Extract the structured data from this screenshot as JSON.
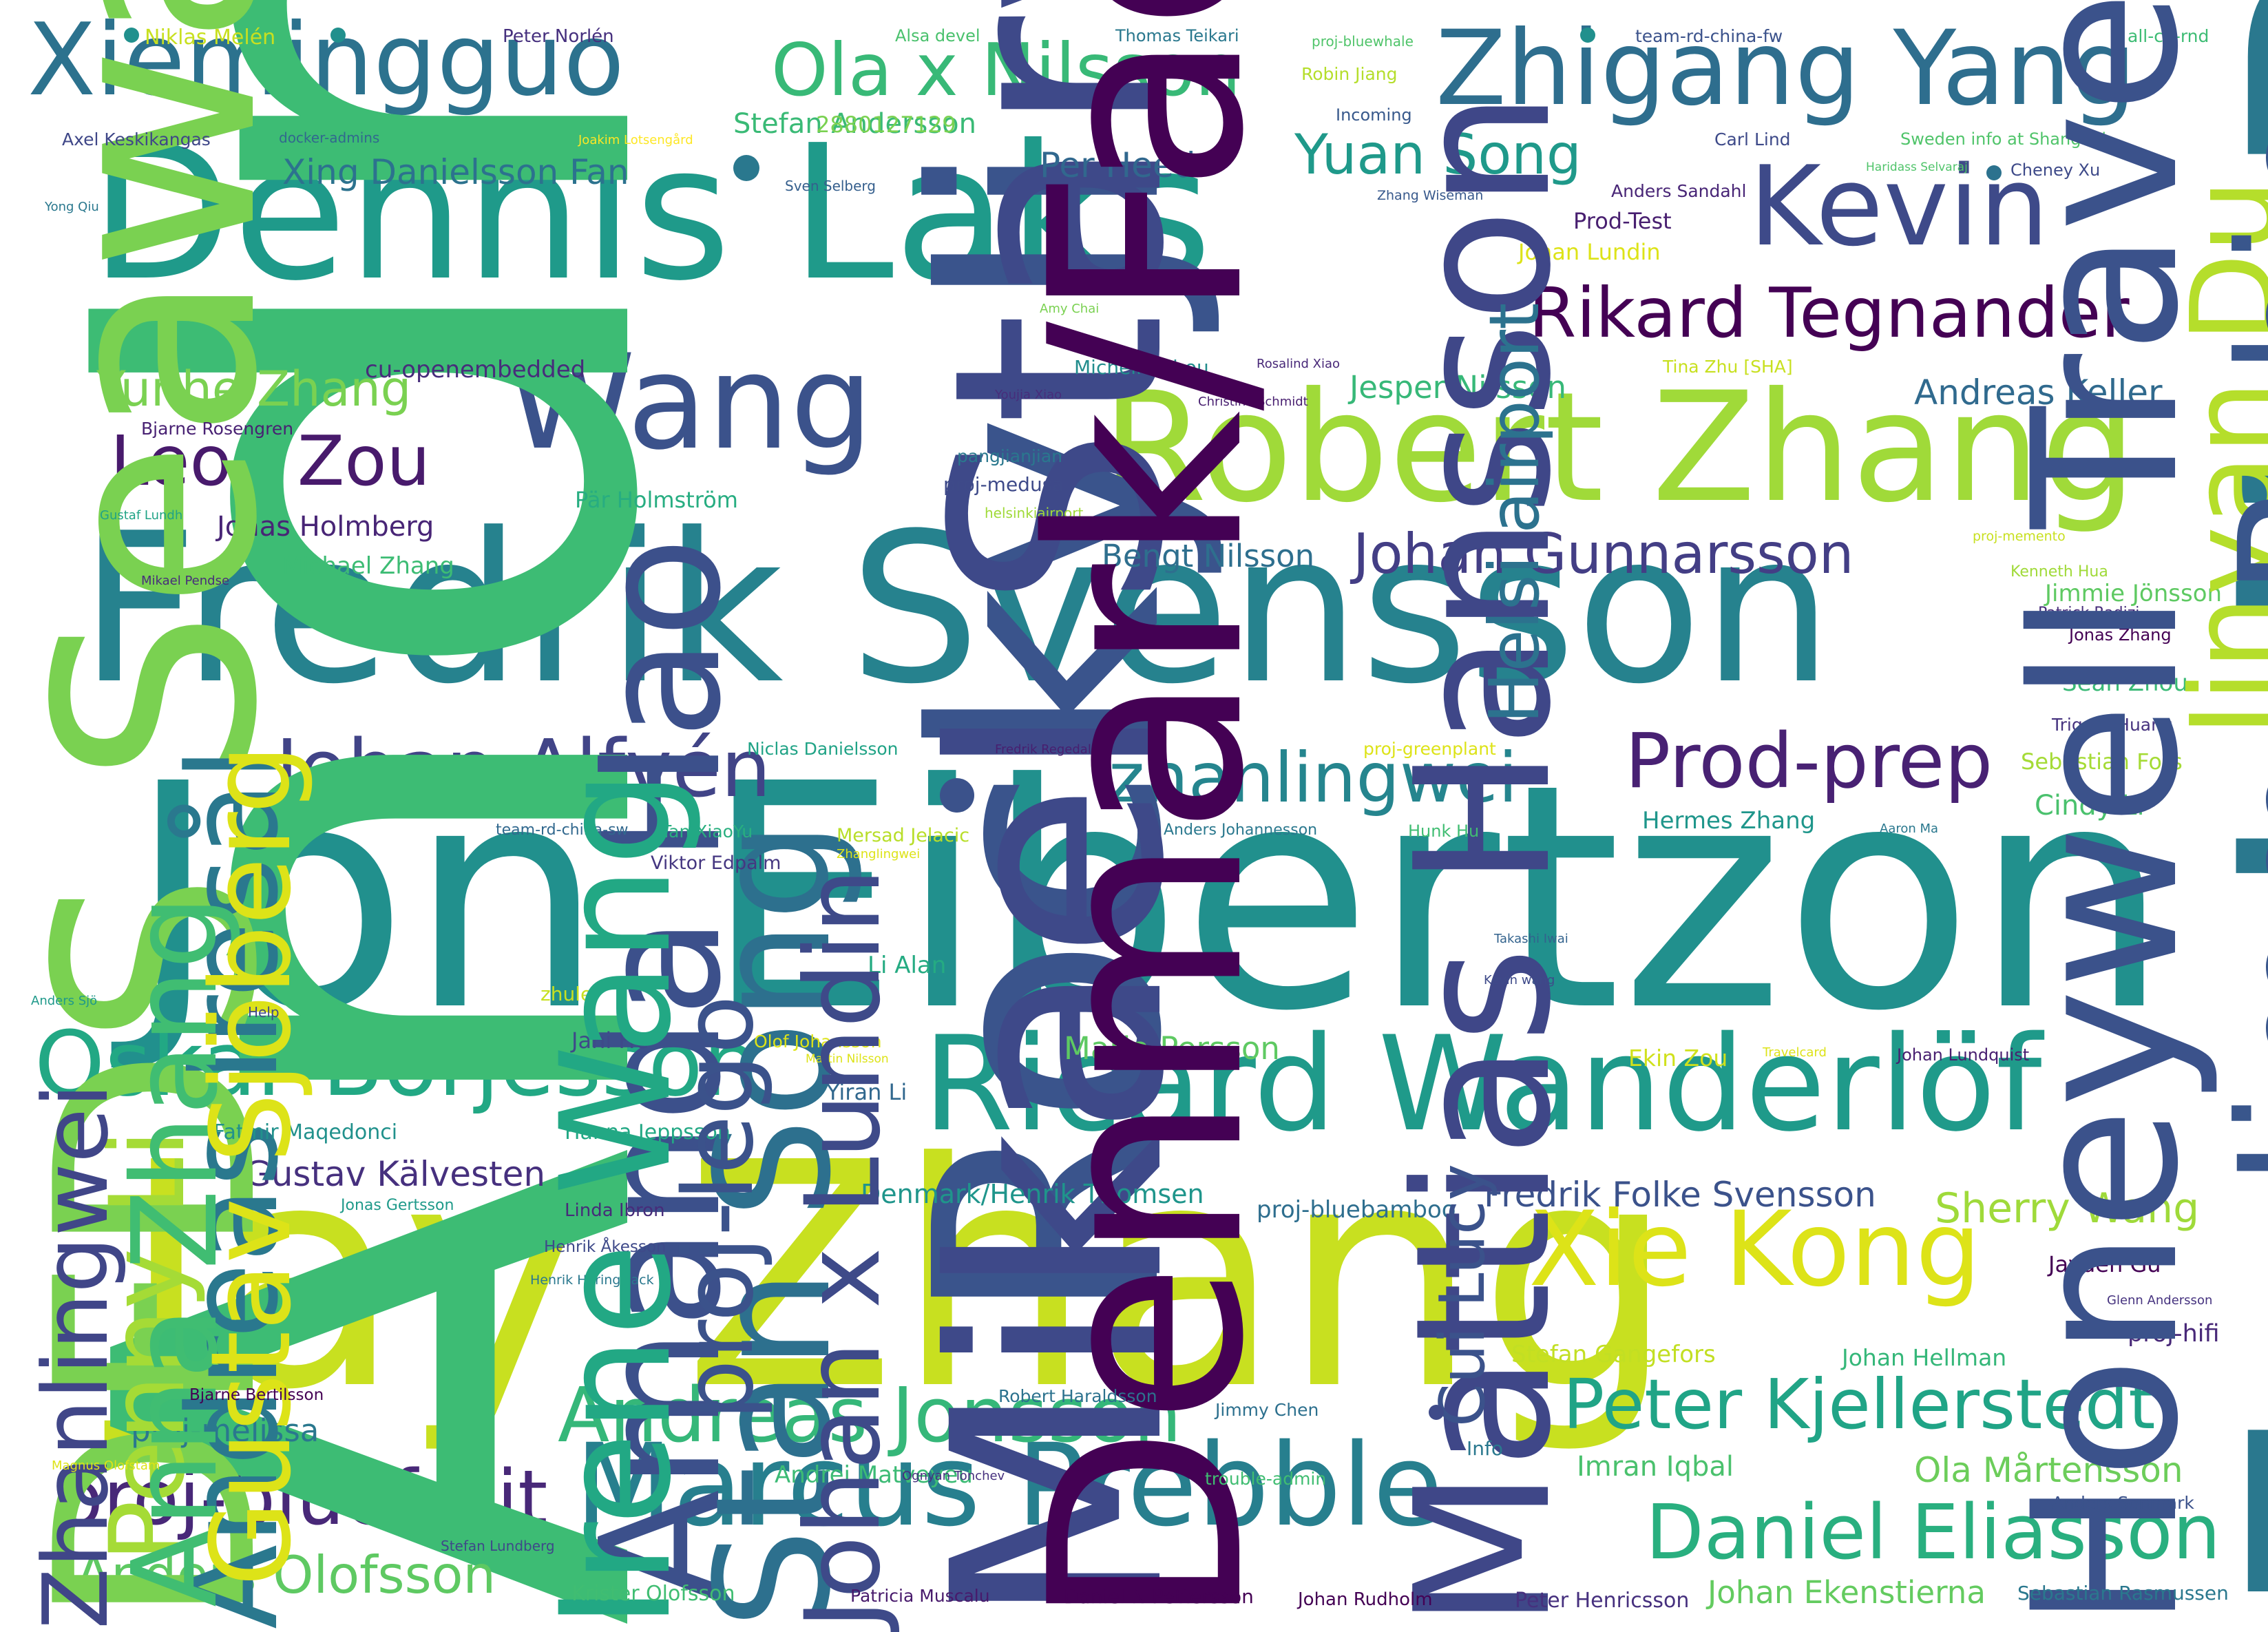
{
  "words": [
    {
      "text": "Jon Eibertzon",
      "color": "#21908d"
    },
    {
      "text": "Jay Zhang",
      "color": "#c8e020"
    },
    {
      "text": "Fredrik Svensson",
      "color": "#26828e"
    },
    {
      "text": "Dennis Laks",
      "color": "#1f9a8a"
    },
    {
      "text": "Robert Zhang",
      "color": "#a0da39"
    },
    {
      "text": "Ricard Wanderlöf",
      "color": "#1f9a8a"
    },
    {
      "text": "Marcus Prebble",
      "color": "#277f8e"
    },
    {
      "text": "Wang",
      "color": "#3b528b"
    },
    {
      "text": "Kevin",
      "color": "#3e4a89"
    },
    {
      "text": "Xiemingguo",
      "color": "#2c728e"
    },
    {
      "text": "Zhigang Yang",
      "color": "#2e6e8e"
    },
    {
      "text": "Xie Kong",
      "color": "#dde318"
    },
    {
      "text": "Oskar Börjesson",
      "color": "#22a884"
    },
    {
      "text": "Peter Kjellerstedt",
      "color": "#20a486"
    },
    {
      "text": "Daniel Eliasson",
      "color": "#29af7f"
    },
    {
      "text": "Andreas Jonsson",
      "color": "#35b779"
    },
    {
      "text": "proj-bluefruit",
      "color": "#482878"
    },
    {
      "text": "Johan Alfvén",
      "color": "#414487"
    },
    {
      "text": "Prod-prep",
      "color": "#482173"
    },
    {
      "text": "zhanlingwei",
      "color": "#25858e"
    },
    {
      "text": "Rikard Tegnander",
      "color": "#440154"
    },
    {
      "text": "Leon Zou",
      "color": "#481a6c"
    },
    {
      "text": "Ola x Nilsson",
      "color": "#38b977"
    },
    {
      "text": "Andreas T Karlsson",
      "color": "#3dbc74"
    },
    {
      "text": "Rocky Ji",
      "color": "#3a548c"
    },
    {
      "text": "Johan Gunnarsson",
      "color": "#433e85"
    },
    {
      "text": "Yuan Song",
      "color": "#1f998a"
    },
    {
      "text": "Anders Olofsson",
      "color": "#5ec962"
    },
    {
      "text": "Yunhe Zhang",
      "color": "#7ad151"
    },
    {
      "text": "Mikael Starvik",
      "color": "#3e4989"
    },
    {
      "text": "Fredrik Bergstrand",
      "color": "#2a788e"
    },
    {
      "text": "Sherry Wang",
      "color": "#9fda3a"
    },
    {
      "text": "Ola Mårtensson",
      "color": "#6ccd5a"
    },
    {
      "text": "Gustav Kälvesten",
      "color": "#46307e"
    },
    {
      "text": "Fredrik Folke Svensson",
      "color": "#3b528b"
    },
    {
      "text": "Xing Danielsson Fan",
      "color": "#2c728e"
    },
    {
      "text": "Stefan Andersson",
      "color": "#3aba76"
    },
    {
      "text": "Per Heed",
      "color": "#31688e"
    },
    {
      "text": "Andreas Keller",
      "color": "#306a8e"
    },
    {
      "text": "Jonas Holmberg",
      "color": "#482576"
    },
    {
      "text": "Jesper Nilsson",
      "color": "#37b878"
    },
    {
      "text": "Bengt Nilsson",
      "color": "#2e6f8e"
    },
    {
      "text": "Maria Persson",
      "color": "#5ec962"
    },
    {
      "text": "Denmark/Henrik Thomsen",
      "color": "#1f958b"
    },
    {
      "text": "DFDS Seaways",
      "color": "#7ad151"
    },
    {
      "text": "Johan Ekenstierna",
      "color": "#63cb5f"
    },
    {
      "text": "cu-openembedded",
      "color": "#472d7b"
    },
    {
      "text": "Amanda Hao",
      "color": "#3c508b"
    },
    {
      "text": "Stan Song",
      "color": "#2d708e"
    },
    {
      "text": "Michael Zhang",
      "color": "#3dbc74"
    },
    {
      "text": "Sean Zhou",
      "color": "#3aba76"
    },
    {
      "text": "Cindy Li",
      "color": "#4ac16d"
    },
    {
      "text": "Hermes Zhang",
      "color": "#1f968b"
    },
    {
      "text": "Jimmie Jönsson",
      "color": "#5ec962"
    },
    {
      "text": "Andrei Matveyeu",
      "color": "#3cbb75"
    },
    {
      "text": "Imran Iqbal",
      "color": "#4ac16d"
    },
    {
      "text": "proj-melissa",
      "color": "#2a788e"
    },
    {
      "text": "proj-hifi",
      "color": "#482878"
    },
    {
      "text": "Jayden Gu",
      "color": "#440154"
    },
    {
      "text": "Stefan Gangefors",
      "color": "#c2df23"
    },
    {
      "text": "Johan Hellman",
      "color": "#35b779"
    },
    {
      "text": "proj-bluebamboo",
      "color": "#2e6e8e"
    },
    {
      "text": "Penny Li",
      "color": "#a5db36"
    },
    {
      "text": "Sebastian Fors",
      "color": "#a5db36"
    },
    {
      "text": "Ekin Zou",
      "color": "#d0e11c"
    },
    {
      "text": "2880127129",
      "color": "#7ad151"
    },
    {
      "text": "Prod-Test",
      "color": "#481f70"
    },
    {
      "text": "Johan Lundin",
      "color": "#dde318"
    },
    {
      "text": "Jinyan Du",
      "color": "#b5de2b"
    },
    {
      "text": "Jimmy Rubin",
      "color": "#39568c"
    },
    {
      "text": "Pär Holmström",
      "color": "#27ad81"
    },
    {
      "text": "Andreas Iresål",
      "color": "#2a788e"
    },
    {
      "text": "Li Alan",
      "color": "#25ab82"
    },
    {
      "text": "Anna Zhang",
      "color": "#40bd72"
    },
    {
      "text": "Yiran Li",
      "color": "#31688e"
    },
    {
      "text": "Jani He",
      "color": "#3e4a89"
    },
    {
      "text": "Hanna Jeppsson",
      "color": "#22a884"
    },
    {
      "text": "Fatmir Maqedonci",
      "color": "#21918c"
    },
    {
      "text": "Mattias Hansson",
      "color": "#3f4788"
    },
    {
      "text": "Niklas Melén",
      "color": "#c8e020"
    },
    {
      "text": "Peter Norlén",
      "color": "#46307e"
    },
    {
      "text": "Alsa devel",
      "color": "#4ac16d"
    },
    {
      "text": "Thomas Teikari",
      "color": "#2a788e"
    },
    {
      "text": "proj-bluewhale",
      "color": "#50c46a"
    },
    {
      "text": "team-rd-china-fw",
      "color": "#3b528b"
    },
    {
      "text": "all-cn-rnd",
      "color": "#3dbc74"
    },
    {
      "text": "Robin Jiang",
      "color": "#b5de2b"
    },
    {
      "text": "Incoming",
      "color": "#38598c"
    },
    {
      "text": "Carl Lind",
      "color": "#3e4a89"
    },
    {
      "text": "Sweden info at Shanghai",
      "color": "#50c46a"
    },
    {
      "text": "Axel Keskikangas",
      "color": "#3f4788"
    },
    {
      "text": "docker-admins",
      "color": "#31688e"
    },
    {
      "text": "Joakim Lotsengård",
      "color": "#fde725"
    },
    {
      "text": "Sven Selberg",
      "color": "#355f8d"
    },
    {
      "text": "Zhang Wiseman",
      "color": "#38598c"
    },
    {
      "text": "Anders Sandahl",
      "color": "#482576"
    },
    {
      "text": "Haridass Selvaraj",
      "color": "#50c46a"
    },
    {
      "text": "Cheney Xu",
      "color": "#3e4a89"
    },
    {
      "text": "Yong Qiu",
      "color": "#2a788e"
    },
    {
      "text": "Amy Chai",
      "color": "#7ad151"
    },
    {
      "text": "Helsi airport",
      "color": "#2c728e"
    },
    {
      "text": "Michelle Zhou",
      "color": "#228d8d"
    },
    {
      "text": "Rosalind Xiao",
      "color": "#482878"
    },
    {
      "text": "Tina Zhu [SHA]",
      "color": "#c8e020"
    },
    {
      "text": "Youjia Xiao",
      "color": "#472d7b"
    },
    {
      "text": "Christina Schmidt",
      "color": "#481f70"
    },
    {
      "text": "Bjarne Rosengren",
      "color": "#482173"
    },
    {
      "text": "pangjianjian",
      "color": "#2a788e"
    },
    {
      "text": "proj-medusa",
      "color": "#3e4a89"
    },
    {
      "text": "helsinkiairport",
      "color": "#a0da39"
    },
    {
      "text": "Gustaf Lundh",
      "color": "#20a386"
    },
    {
      "text": "proj-memento",
      "color": "#c8e020"
    },
    {
      "text": "Kenneth Hua",
      "color": "#a0da39"
    },
    {
      "text": "Mikael Pendse",
      "color": "#472d7b"
    },
    {
      "text": "Jonas Zhang",
      "color": "#440154"
    },
    {
      "text": "Patrick Radizi",
      "color": "#472c7a"
    },
    {
      "text": "Gustav Sjöberg",
      "color": "#dde318"
    },
    {
      "text": "Trigger Huang",
      "color": "#46337f"
    },
    {
      "text": "Niclas Danielsson",
      "color": "#20a386"
    },
    {
      "text": "Fredrik Regedal",
      "color": "#481f70"
    },
    {
      "text": "proj-greenplant",
      "color": "#dde318"
    },
    {
      "text": "team-rd-china-sw",
      "color": "#31688e"
    },
    {
      "text": "Tan XiaoYu",
      "color": "#29af7f"
    },
    {
      "text": "Mersad Jelacic",
      "color": "#b8de29"
    },
    {
      "text": "Zhanglingwei",
      "color": "#dde318"
    },
    {
      "text": "Anders Johannesson",
      "color": "#2a788e"
    },
    {
      "text": "Hunk Hu",
      "color": "#40bd72"
    },
    {
      "text": "Aaron Ma",
      "color": "#2a788e"
    },
    {
      "text": "Honeywell Travel Card",
      "color": "#3b528b"
    },
    {
      "text": "Viktor Edpalm",
      "color": "#453781"
    },
    {
      "text": "Denmark/Fadrique Avalle-Arce",
      "color": "#440154"
    },
    {
      "text": "Takashi Iwai",
      "color": "#33638d"
    },
    {
      "text": "Kevin wang",
      "color": "#3e4a89"
    },
    {
      "text": "proj-lego",
      "color": "#3b528b"
    },
    {
      "text": "zhulei",
      "color": "#c8e020"
    },
    {
      "text": "Anders Sjö",
      "color": "#1f998a"
    },
    {
      "text": "Help",
      "color": "#3e4989"
    },
    {
      "text": "Olof Johansson",
      "color": "#dde318"
    },
    {
      "text": "Martin Nilsson",
      "color": "#dde318"
    },
    {
      "text": "Travelcard",
      "color": "#dde318"
    },
    {
      "text": "Johan Lundquist",
      "color": "#481f70"
    },
    {
      "text": "Cui Lucy",
      "color": "#3b528b"
    },
    {
      "text": "Jonas Gertsson",
      "color": "#1f9a8a"
    },
    {
      "text": "Linda Ibron",
      "color": "#472c7a"
    },
    {
      "text": "Henrik Åkesson",
      "color": "#3e4989"
    },
    {
      "text": "Henrik Heringslack",
      "color": "#2a788e"
    },
    {
      "text": "Johan x Lundin",
      "color": "#3e4a89"
    },
    {
      "text": "Irene Wang",
      "color": "#22a884"
    },
    {
      "text": "Glenn Andersson",
      "color": "#46337f"
    },
    {
      "text": "Zhanlingwei",
      "color": "#404688"
    },
    {
      "text": "Bjarne Bertilsson",
      "color": "#440154"
    },
    {
      "text": "Robert Haraldsson",
      "color": "#2c728e"
    },
    {
      "text": "Jimmy Chen",
      "color": "#2d708e"
    },
    {
      "text": "Magnus Olofstam",
      "color": "#dde318"
    },
    {
      "text": "Info",
      "color": "#2a788e"
    },
    {
      "text": "Ognyan Tonchev",
      "color": "#46307e"
    },
    {
      "text": "trouble-admin",
      "color": "#40bd72"
    },
    {
      "text": "Anders Sonmark",
      "color": "#3b528b"
    },
    {
      "text": "Stefan Lundberg",
      "color": "#3e4989"
    },
    {
      "text": "Krister Olofsson",
      "color": "#40bd72"
    },
    {
      "text": "Patricia Muscalu",
      "color": "#481a6c"
    },
    {
      "text": "Daniel N Pettersson",
      "color": "#440154"
    },
    {
      "text": "Johan Rudholm",
      "color": "#440154"
    },
    {
      "text": "Peter Henricsson",
      "color": "#46307e"
    },
    {
      "text": "Sebastian Rasmussen",
      "color": "#2a788e"
    }
  ],
  "dot_colors": [
    "#21908d",
    "#2a788e",
    "#2c728e",
    "#3b528b",
    "#3e4a89"
  ]
}
